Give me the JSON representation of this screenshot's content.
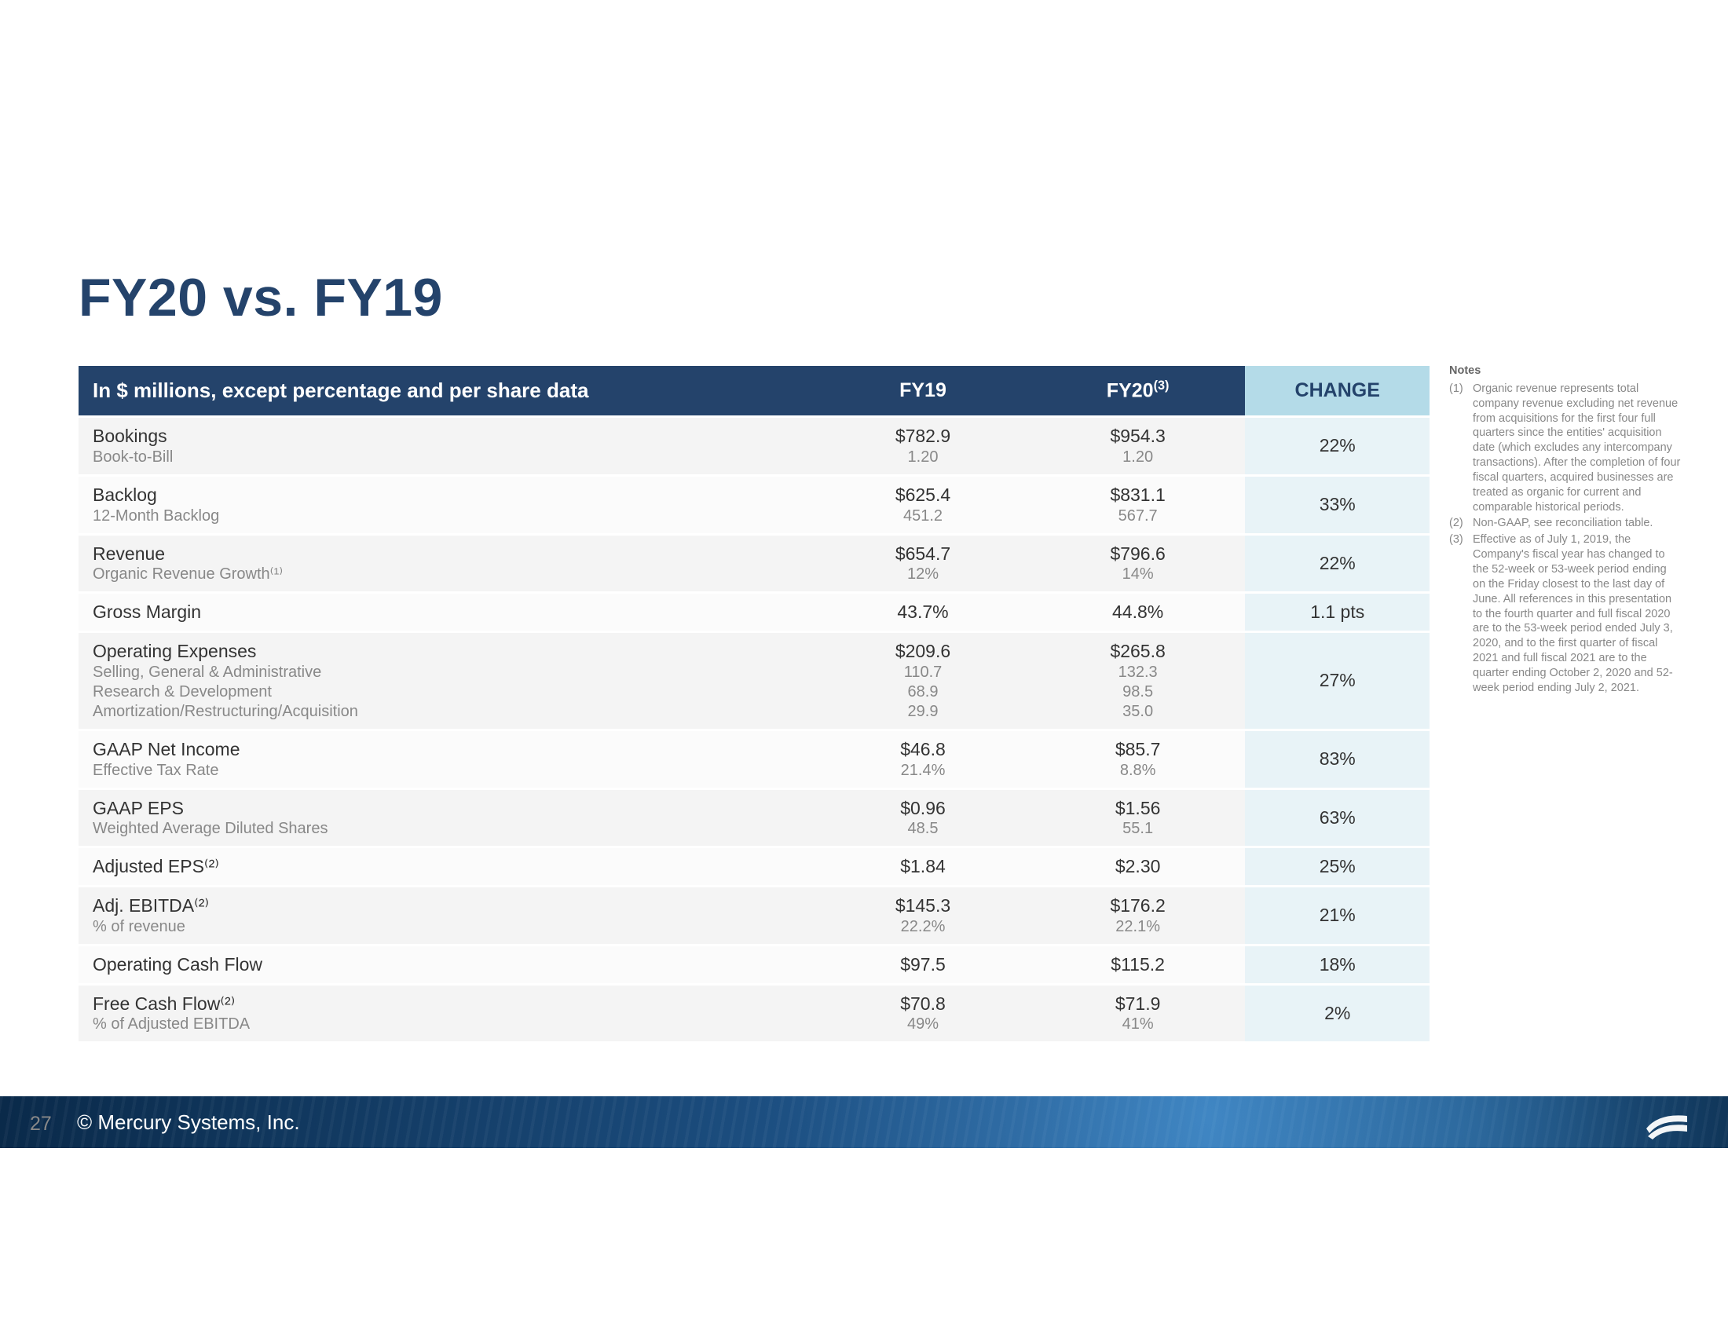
{
  "slide": {
    "title": "FY20 vs. FY19",
    "page_number": "27",
    "company": "© Mercury Systems, Inc."
  },
  "colors": {
    "header_bg": "#24436b",
    "header_text": "#ffffff",
    "change_head_bg": "#b4dbe8",
    "change_cell_bg": "#e8f3f7",
    "row_bg": "#f4f4f4",
    "row_alt_bg": "#fbfbfb",
    "title_color": "#24436b",
    "sub_text": "#888888",
    "notes_text": "#888888",
    "footer_gradient_start": "#0a2a4a",
    "footer_gradient_end": "#2a6aa8"
  },
  "typography": {
    "title_fontsize": 68,
    "header_fontsize": 25,
    "body_fontsize": 23,
    "sub_fontsize": 20,
    "notes_fontsize": 14.5,
    "font_family": "Arial"
  },
  "table": {
    "header_label": "In $ millions, except percentage and per share data",
    "col_fy19": "FY19",
    "col_fy20": "FY20",
    "col_fy20_sup": "(3)",
    "col_change": "CHANGE",
    "rows": [
      {
        "main": "Bookings",
        "subs": [
          "Book-to-Bill"
        ],
        "fy19": [
          "$782.9",
          "1.20"
        ],
        "fy20": [
          "$954.3",
          "1.20"
        ],
        "change": "22%"
      },
      {
        "main": "Backlog",
        "subs": [
          "12-Month Backlog"
        ],
        "fy19": [
          "$625.4",
          "451.2"
        ],
        "fy20": [
          "$831.1",
          "567.7"
        ],
        "change": "33%"
      },
      {
        "main": "Revenue",
        "subs": [
          "Organic Revenue Growth⁽¹⁾"
        ],
        "fy19": [
          "$654.7",
          "12%"
        ],
        "fy20": [
          "$796.6",
          "14%"
        ],
        "change": "22%"
      },
      {
        "main": "Gross Margin",
        "subs": [],
        "fy19": [
          "43.7%"
        ],
        "fy20": [
          "44.8%"
        ],
        "change": "1.1 pts"
      },
      {
        "main": "Operating Expenses",
        "subs": [
          "Selling, General & Administrative",
          "Research & Development",
          "Amortization/Restructuring/Acquisition"
        ],
        "fy19": [
          "$209.6",
          "110.7",
          "68.9",
          "29.9"
        ],
        "fy20": [
          "$265.8",
          "132.3",
          "98.5",
          "35.0"
        ],
        "change": "27%"
      },
      {
        "main": "GAAP Net Income",
        "subs": [
          "Effective Tax Rate"
        ],
        "fy19": [
          "$46.8",
          "21.4%"
        ],
        "fy20": [
          "$85.7",
          "8.8%"
        ],
        "change": "83%"
      },
      {
        "main": "GAAP EPS",
        "subs": [
          "Weighted Average Diluted Shares"
        ],
        "fy19": [
          "$0.96",
          "48.5"
        ],
        "fy20": [
          "$1.56",
          "55.1"
        ],
        "change": "63%"
      },
      {
        "main": "Adjusted EPS⁽²⁾",
        "subs": [],
        "fy19": [
          "$1.84"
        ],
        "fy20": [
          "$2.30"
        ],
        "change": "25%"
      },
      {
        "main": "Adj. EBITDA⁽²⁾",
        "subs": [
          "% of revenue"
        ],
        "fy19": [
          "$145.3",
          "22.2%"
        ],
        "fy20": [
          "$176.2",
          "22.1%"
        ],
        "change": "21%"
      },
      {
        "main": "Operating Cash Flow",
        "subs": [],
        "fy19": [
          "$97.5"
        ],
        "fy20": [
          "$115.2"
        ],
        "change": "18%"
      },
      {
        "main": "Free Cash Flow⁽²⁾",
        "subs": [
          "% of Adjusted EBITDA"
        ],
        "fy19": [
          "$70.8",
          "49%"
        ],
        "fy20": [
          "$71.9",
          "41%"
        ],
        "change": "2%"
      }
    ]
  },
  "notes": {
    "title": "Notes",
    "items": [
      {
        "n": "(1)",
        "t": "Organic revenue represents total company revenue excluding net revenue from acquisitions for the first four full quarters since the entities' acquisition date (which excludes any intercompany transactions). After the completion of four fiscal quarters, acquired businesses are treated as organic for current and comparable historical periods."
      },
      {
        "n": "(2)",
        "t": "Non-GAAP, see reconciliation table."
      },
      {
        "n": "(3)",
        "t": "Effective as of July 1, 2019, the Company's fiscal year has changed to the 52-week or 53-week period ending on the Friday closest to the last day of June. All references in this presentation to the fourth quarter and full fiscal 2020 are to the 53-week period ended July 3, 2020, and to the first quarter of fiscal 2021 and full fiscal 2021 are to the quarter ending October 2, 2020 and 52-week period ending July 2, 2021."
      }
    ]
  }
}
